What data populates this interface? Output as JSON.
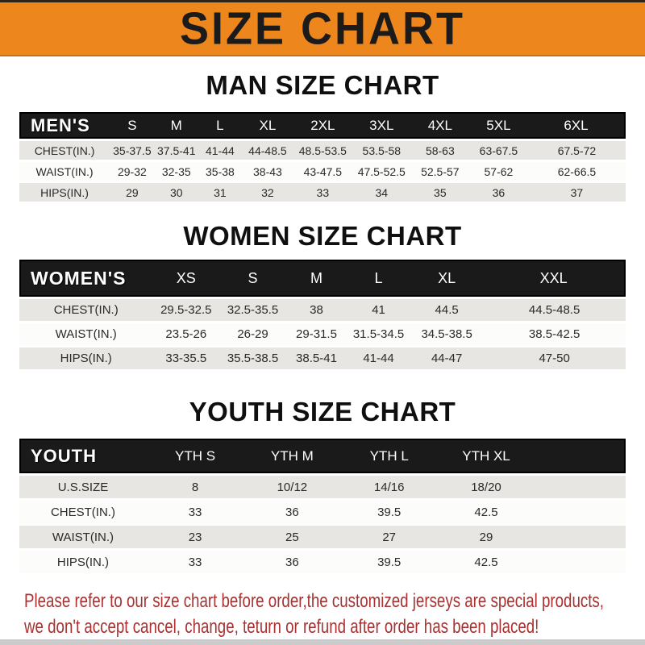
{
  "banner": {
    "title": "SIZE CHART"
  },
  "sections": [
    {
      "heading": "MAN SIZE CHART",
      "header_label": "MEN'S",
      "columns": [
        "S",
        "M",
        "L",
        "XL",
        "2XL",
        "3XL",
        "4XL",
        "5XL",
        "6XL"
      ],
      "rows": [
        {
          "label": "CHEST(IN.)",
          "values": [
            "35-37.5",
            "37.5-41",
            "41-44",
            "44-48.5",
            "48.5-53.5",
            "53.5-58",
            "58-63",
            "63-67.5",
            "67.5-72"
          ]
        },
        {
          "label": "WAIST(IN.)",
          "values": [
            "29-32",
            "32-35",
            "35-38",
            "38-43",
            "43-47.5",
            "47.5-52.5",
            "52.5-57",
            "57-62",
            "62-66.5"
          ]
        },
        {
          "label": "HIPS(IN.)",
          "values": [
            "29",
            "30",
            "31",
            "32",
            "33",
            "34",
            "35",
            "36",
            "37"
          ]
        }
      ]
    },
    {
      "heading": "WOMEN SIZE CHART",
      "header_label": "WOMEN'S",
      "columns": [
        "XS",
        "S",
        "M",
        "L",
        "XL",
        "XXL"
      ],
      "rows": [
        {
          "label": "CHEST(IN.)",
          "values": [
            "29.5-32.5",
            "32.5-35.5",
            "38",
            "41",
            "44.5",
            "44.5-48.5"
          ]
        },
        {
          "label": "WAIST(IN.)",
          "values": [
            "23.5-26",
            "26-29",
            "29-31.5",
            "31.5-34.5",
            "34.5-38.5",
            "38.5-42.5"
          ]
        },
        {
          "label": "HIPS(IN.)",
          "values": [
            "33-35.5",
            "35.5-38.5",
            "38.5-41",
            "41-44",
            "44-47",
            "47-50"
          ]
        }
      ]
    },
    {
      "heading": "YOUTH SIZE CHART",
      "header_label": "YOUTH",
      "columns": [
        "YTH S",
        "YTH M",
        "YTH L",
        "YTH XL"
      ],
      "rows": [
        {
          "label": "U.S.SIZE",
          "values": [
            "8",
            "10/12",
            "14/16",
            "18/20"
          ]
        },
        {
          "label": "CHEST(IN.)",
          "values": [
            "33",
            "36",
            "39.5",
            "42.5"
          ]
        },
        {
          "label": "WAIST(IN.)",
          "values": [
            "23",
            "25",
            "27",
            "29"
          ]
        },
        {
          "label": "HIPS(IN.)",
          "values": [
            "33",
            "36",
            "39.5",
            "42.5"
          ]
        }
      ]
    }
  ],
  "footer": {
    "line1": "Please refer to our size chart before order,the customized jerseys are special products,",
    "line2": "we don't accept cancel, change, teturn or refund after order has been placed!"
  },
  "colors": {
    "banner_orange": "#ED861C",
    "banner_border_dark": "#2e2416",
    "header_bar_black": "#1a1a1a",
    "row_gray": "#E7E6E3",
    "row_white": "#FCFCFB",
    "footer_red": "#A93131"
  }
}
